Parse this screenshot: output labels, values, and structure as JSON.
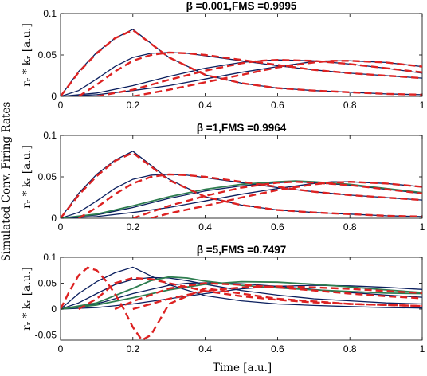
{
  "figure": {
    "ylabel": "Simulated Conv. Firing Rates",
    "xlabel": "Time [a.u.]"
  },
  "colors": {
    "true_curve": "#0b1f5e",
    "fitted_curve": "#2e7d4f",
    "simulated_dashed": "#dd2222",
    "axes": "#000000"
  },
  "chart_data": [
    {
      "type": "line",
      "title": "β =0.001,FMS =0.9995",
      "ylabel": "rᵣ * kᵣ [a.u.]",
      "xlim": [
        0,
        1
      ],
      "ylim": [
        0,
        0.1
      ],
      "xticks": [
        "0",
        "0.2",
        "0.4",
        "0.6",
        "0.8",
        "1"
      ],
      "yticks": [
        "0",
        "0.05",
        "0.1"
      ],
      "series": [
        {
          "x": [
            0,
            0.05,
            0.1,
            0.15,
            0.2,
            0.3,
            0.4,
            0.5,
            0.6,
            0.7,
            0.8,
            0.9,
            1.0
          ],
          "values": [
            0,
            0.03,
            0.053,
            0.07,
            0.081,
            0.047,
            0.026,
            0.016,
            0.01,
            0.007,
            0.005,
            0.003,
            0.002
          ]
        },
        {
          "x": [
            0,
            0.05,
            0.1,
            0.15,
            0.2,
            0.25,
            0.3,
            0.35,
            0.4,
            0.5,
            0.6,
            0.7,
            0.8,
            0.9,
            1.0
          ],
          "values": [
            0,
            0.007,
            0.021,
            0.036,
            0.047,
            0.052,
            0.053,
            0.052,
            0.049,
            0.043,
            0.037,
            0.032,
            0.028,
            0.025,
            0.022
          ]
        },
        {
          "x": [
            0,
            0.1,
            0.2,
            0.3,
            0.4,
            0.5,
            0.55,
            0.6,
            0.7,
            0.8,
            0.9,
            1.0
          ],
          "values": [
            0,
            0.004,
            0.013,
            0.024,
            0.034,
            0.041,
            0.043,
            0.044,
            0.043,
            0.039,
            0.034,
            0.028
          ]
        },
        {
          "x": [
            0,
            0.1,
            0.2,
            0.3,
            0.4,
            0.5,
            0.6,
            0.7,
            0.75,
            0.8,
            0.9,
            1.0
          ],
          "values": [
            0,
            0.002,
            0.007,
            0.013,
            0.021,
            0.029,
            0.036,
            0.042,
            0.043,
            0.043,
            0.041,
            0.036
          ]
        }
      ],
      "fitted": [],
      "dashed": [
        {
          "x": [
            0,
            0.05,
            0.1,
            0.15,
            0.2,
            0.3,
            0.4,
            0.5,
            0.6,
            0.7,
            0.8,
            0.9,
            1.0
          ],
          "values": [
            0,
            0.029,
            0.052,
            0.07,
            0.08,
            0.047,
            0.026,
            0.016,
            0.01,
            0.007,
            0.005,
            0.003,
            0.002
          ]
        },
        {
          "x": [
            0.05,
            0.1,
            0.15,
            0.2,
            0.25,
            0.3,
            0.35,
            0.4,
            0.5,
            0.6,
            0.7,
            0.8,
            0.9,
            1.0
          ],
          "values": [
            0,
            0.014,
            0.03,
            0.043,
            0.05,
            0.053,
            0.052,
            0.05,
            0.044,
            0.038,
            0.032,
            0.028,
            0.025,
            0.022
          ]
        },
        {
          "x": [
            0.1,
            0.2,
            0.3,
            0.4,
            0.5,
            0.55,
            0.6,
            0.7,
            0.8,
            0.9,
            1.0
          ],
          "values": [
            0,
            0.008,
            0.02,
            0.031,
            0.04,
            0.043,
            0.044,
            0.043,
            0.039,
            0.034,
            0.029
          ]
        },
        {
          "x": [
            0.2,
            0.3,
            0.4,
            0.5,
            0.6,
            0.7,
            0.75,
            0.8,
            0.9,
            1.0
          ],
          "values": [
            0,
            0.008,
            0.017,
            0.026,
            0.035,
            0.041,
            0.043,
            0.043,
            0.041,
            0.036
          ]
        }
      ]
    },
    {
      "type": "line",
      "title": "β =1,FMS =0.9964",
      "ylabel": "rᵣ * kᵣ [a.u.]",
      "xlim": [
        0,
        1
      ],
      "ylim": [
        0,
        0.1
      ],
      "xticks": [
        "0",
        "0.2",
        "0.4",
        "0.6",
        "0.8",
        "1"
      ],
      "yticks": [
        "0",
        "0.05",
        "0.1"
      ],
      "series": [
        {
          "x": [
            0,
            0.05,
            0.1,
            0.15,
            0.2,
            0.3,
            0.4,
            0.5,
            0.6,
            0.7,
            0.8,
            0.9,
            1.0
          ],
          "values": [
            0,
            0.03,
            0.053,
            0.07,
            0.081,
            0.047,
            0.026,
            0.016,
            0.01,
            0.007,
            0.005,
            0.003,
            0.002
          ]
        },
        {
          "x": [
            0,
            0.05,
            0.1,
            0.15,
            0.2,
            0.25,
            0.3,
            0.35,
            0.4,
            0.5,
            0.6,
            0.7,
            0.8,
            0.9,
            1.0
          ],
          "values": [
            0,
            0.007,
            0.021,
            0.036,
            0.047,
            0.052,
            0.053,
            0.052,
            0.049,
            0.043,
            0.037,
            0.032,
            0.028,
            0.025,
            0.022
          ]
        },
        {
          "x": [
            0,
            0.1,
            0.2,
            0.3,
            0.4,
            0.5,
            0.6,
            0.65,
            0.7,
            0.8,
            0.9,
            1.0
          ],
          "values": [
            0,
            0.004,
            0.013,
            0.024,
            0.033,
            0.039,
            0.043,
            0.044,
            0.043,
            0.04,
            0.035,
            0.03
          ]
        },
        {
          "x": [
            0,
            0.1,
            0.2,
            0.3,
            0.4,
            0.5,
            0.6,
            0.7,
            0.75,
            0.8,
            0.9,
            1.0
          ],
          "values": [
            0,
            0.002,
            0.007,
            0.013,
            0.021,
            0.029,
            0.036,
            0.042,
            0.044,
            0.044,
            0.042,
            0.038
          ]
        }
      ],
      "fitted": [
        {
          "x": [
            0,
            0.1,
            0.2,
            0.3,
            0.4,
            0.5,
            0.6,
            0.65,
            0.7,
            0.8,
            0.9,
            1.0
          ],
          "values": [
            0,
            0.005,
            0.015,
            0.026,
            0.035,
            0.041,
            0.044,
            0.045,
            0.044,
            0.041,
            0.036,
            0.031
          ]
        }
      ],
      "dashed": [
        {
          "x": [
            0,
            0.05,
            0.1,
            0.15,
            0.2,
            0.3,
            0.4,
            0.5,
            0.6,
            0.7,
            0.8,
            0.9,
            1.0
          ],
          "values": [
            0,
            0.028,
            0.051,
            0.069,
            0.079,
            0.046,
            0.026,
            0.016,
            0.01,
            0.007,
            0.005,
            0.003,
            0.002
          ]
        },
        {
          "x": [
            0.05,
            0.1,
            0.15,
            0.2,
            0.25,
            0.3,
            0.35,
            0.4,
            0.5,
            0.6,
            0.7,
            0.8,
            0.9,
            1.0
          ],
          "values": [
            0,
            0.013,
            0.029,
            0.042,
            0.05,
            0.053,
            0.052,
            0.05,
            0.044,
            0.038,
            0.032,
            0.028,
            0.025,
            0.022
          ]
        },
        {
          "x": [
            0.2,
            0.3,
            0.4,
            0.5,
            0.6,
            0.65,
            0.7,
            0.8,
            0.9,
            1.0
          ],
          "values": [
            0,
            0.015,
            0.027,
            0.037,
            0.043,
            0.044,
            0.043,
            0.04,
            0.035,
            0.03
          ]
        },
        {
          "x": [
            0.25,
            0.3,
            0.4,
            0.5,
            0.6,
            0.7,
            0.75,
            0.8,
            0.9,
            1.0
          ],
          "values": [
            0,
            0.006,
            0.015,
            0.025,
            0.034,
            0.041,
            0.043,
            0.044,
            0.042,
            0.038
          ]
        }
      ]
    },
    {
      "type": "line",
      "title": "β =5,FMS =0.7497",
      "ylabel": "rᵣ * kᵣ [a.u.]",
      "xlim": [
        0,
        1
      ],
      "ylim": [
        -0.06,
        0.1
      ],
      "xticks": [
        "0",
        "0.2",
        "0.4",
        "0.6",
        "0.8",
        "1"
      ],
      "yticks": [
        "-0.05",
        "0",
        "0.05",
        "0.1"
      ],
      "series": [
        {
          "x": [
            0,
            0.05,
            0.1,
            0.15,
            0.2,
            0.3,
            0.4,
            0.5,
            0.6,
            0.7,
            0.8,
            0.9,
            1.0
          ],
          "values": [
            0,
            0.03,
            0.053,
            0.07,
            0.081,
            0.047,
            0.026,
            0.016,
            0.01,
            0.007,
            0.005,
            0.003,
            0.002
          ]
        },
        {
          "x": [
            0,
            0.05,
            0.1,
            0.15,
            0.2,
            0.25,
            0.3,
            0.35,
            0.4,
            0.5,
            0.6,
            0.7,
            0.8,
            0.9,
            1.0
          ],
          "values": [
            0,
            0.012,
            0.03,
            0.047,
            0.057,
            0.061,
            0.06,
            0.055,
            0.048,
            0.036,
            0.027,
            0.02,
            0.016,
            0.012,
            0.01
          ]
        },
        {
          "x": [
            0,
            0.1,
            0.2,
            0.3,
            0.35,
            0.4,
            0.5,
            0.6,
            0.7,
            0.8,
            0.9,
            1.0
          ],
          "values": [
            0,
            0.01,
            0.03,
            0.046,
            0.05,
            0.051,
            0.049,
            0.044,
            0.038,
            0.032,
            0.027,
            0.023
          ]
        },
        {
          "x": [
            0,
            0.1,
            0.2,
            0.3,
            0.4,
            0.5,
            0.6,
            0.7,
            0.8,
            0.9,
            1.0
          ],
          "values": [
            0,
            0.003,
            0.01,
            0.02,
            0.03,
            0.039,
            0.044,
            0.046,
            0.045,
            0.042,
            0.038
          ]
        }
      ],
      "fitted": [
        {
          "x": [
            0,
            0.1,
            0.2,
            0.25,
            0.3,
            0.35,
            0.4,
            0.5,
            0.6,
            0.7,
            0.8,
            0.9,
            1.0
          ],
          "values": [
            0,
            0.012,
            0.04,
            0.055,
            0.062,
            0.06,
            0.054,
            0.046,
            0.041,
            0.037,
            0.034,
            0.031,
            0.03
          ]
        },
        {
          "x": [
            0,
            0.1,
            0.2,
            0.3,
            0.4,
            0.5,
            0.6,
            0.7,
            0.8,
            0.9,
            1.0
          ],
          "values": [
            0,
            0.008,
            0.022,
            0.037,
            0.048,
            0.053,
            0.052,
            0.048,
            0.043,
            0.037,
            0.032
          ]
        }
      ],
      "dashed": [
        {
          "x": [
            0,
            0.025,
            0.05,
            0.075,
            0.1,
            0.125,
            0.15,
            0.175,
            0.2,
            0.225,
            0.25,
            0.275,
            0.3,
            0.4,
            0.5,
            0.6,
            0.7,
            0.8,
            0.9,
            1.0
          ],
          "values": [
            0,
            0.035,
            0.065,
            0.08,
            0.075,
            0.055,
            0.03,
            0.0,
            -0.035,
            -0.06,
            -0.05,
            -0.02,
            0.01,
            0.04,
            0.03,
            0.02,
            0.015,
            0.01,
            0.008,
            0.006
          ]
        },
        {
          "x": [
            0.05,
            0.1,
            0.15,
            0.2,
            0.25,
            0.3,
            0.4,
            0.5,
            0.6,
            0.7,
            0.8,
            0.9,
            1.0
          ],
          "values": [
            0,
            0.02,
            0.05,
            0.06,
            0.058,
            0.05,
            0.035,
            0.025,
            0.018,
            0.013,
            0.01,
            0.008,
            0.006
          ]
        },
        {
          "x": [
            0.15,
            0.2,
            0.3,
            0.4,
            0.5,
            0.6,
            0.7,
            0.8,
            0.9,
            1.0
          ],
          "values": [
            0,
            0.015,
            0.04,
            0.05,
            0.047,
            0.042,
            0.036,
            0.03,
            0.025,
            0.021
          ]
        },
        {
          "x": [
            0.2,
            0.3,
            0.4,
            0.5,
            0.6,
            0.7,
            0.8,
            0.9,
            1.0
          ],
          "values": [
            0,
            0.02,
            0.035,
            0.042,
            0.044,
            0.042,
            0.039,
            0.035,
            0.031
          ]
        }
      ]
    }
  ]
}
